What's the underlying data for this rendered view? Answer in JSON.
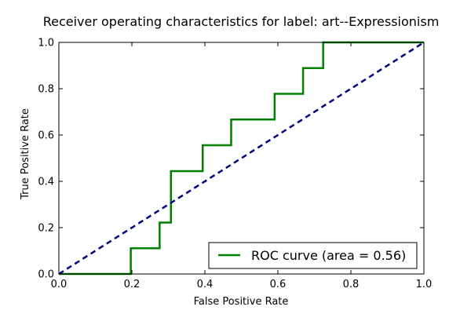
{
  "chart_data": {
    "type": "line",
    "title": "Receiver operating characteristics for label: art--Expressionism",
    "xlabel": "False Positive Rate",
    "ylabel": "True Positive Rate",
    "xlim": [
      0.0,
      1.0
    ],
    "ylim": [
      0.0,
      1.0
    ],
    "xticks": [
      "0.0",
      "0.2",
      "0.4",
      "0.6",
      "0.8",
      "1.0"
    ],
    "yticks": [
      "0.0",
      "0.2",
      "0.4",
      "0.6",
      "0.8",
      "1.0"
    ],
    "grid": false,
    "legend_position": "lower-right",
    "series": [
      {
        "name": "ROC curve (area = 0.56)",
        "color": "#008000",
        "style": "solid",
        "x": [
          0.0,
          0.197,
          0.197,
          0.276,
          0.276,
          0.307,
          0.307,
          0.394,
          0.394,
          0.472,
          0.472,
          0.591,
          0.591,
          0.669,
          0.669,
          0.724,
          0.724,
          1.0
        ],
        "y": [
          0.0,
          0.0,
          0.111,
          0.111,
          0.222,
          0.222,
          0.444,
          0.444,
          0.556,
          0.556,
          0.667,
          0.667,
          0.778,
          0.778,
          0.889,
          0.889,
          1.0,
          1.0
        ]
      },
      {
        "color": "#000080",
        "style": "dashed",
        "x": [
          0.0,
          1.0
        ],
        "y": [
          0.0,
          1.0
        ]
      }
    ]
  }
}
